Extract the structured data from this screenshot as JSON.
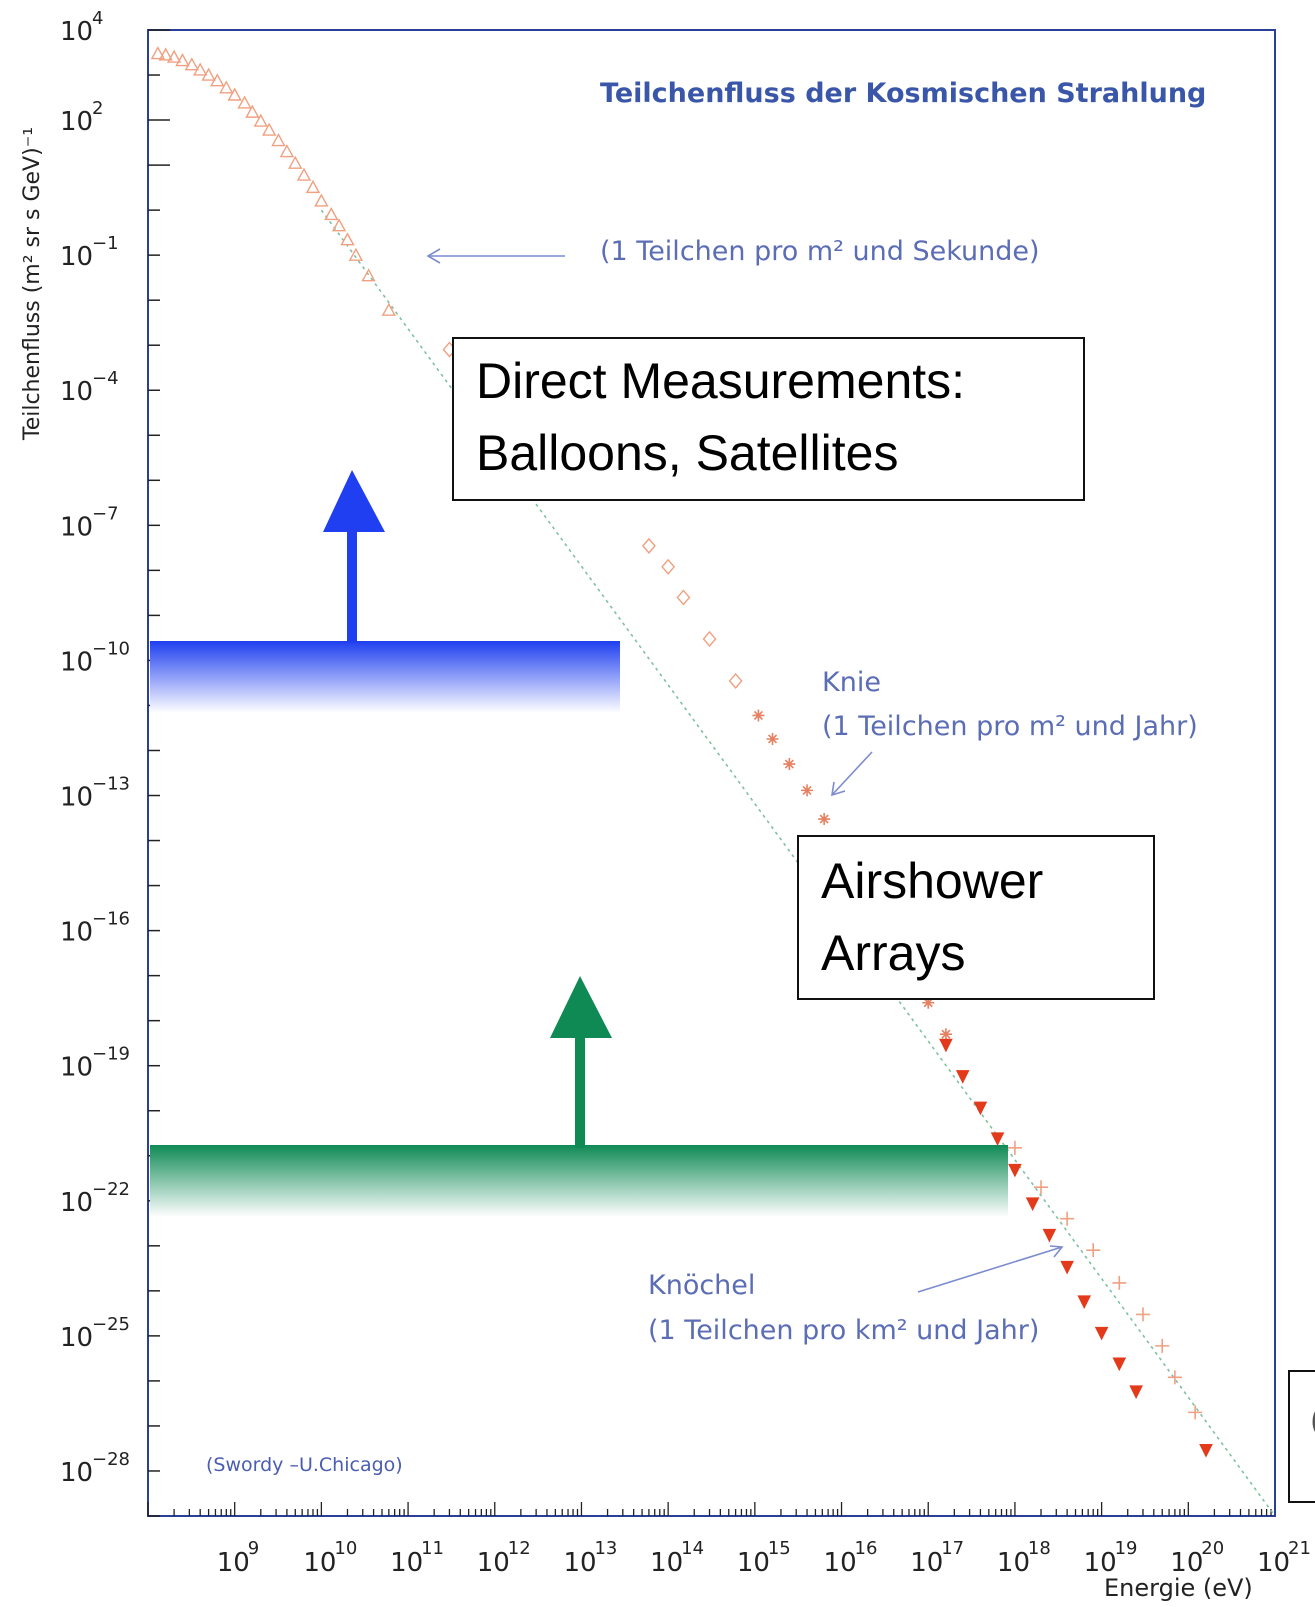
{
  "chart_data": {
    "type": "scatter",
    "title": "Teilchenfluss der Kosmischen Strahlung",
    "ylabel": "Teilchenfluss (m² sr s GeV)⁻¹",
    "xlabel": "Energie (eV)",
    "x_scale": "log",
    "y_scale": "log",
    "xlim": [
      100000000.0,
      1e+21
    ],
    "ylim": [
      1e-29,
      10000.0
    ],
    "x_ticks": [
      {
        "base": "10",
        "exp": "9",
        "value": 1000000000.0
      },
      {
        "base": "10",
        "exp": "10",
        "value": 10000000000.0
      },
      {
        "base": "10",
        "exp": "11",
        "value": 100000000000.0
      },
      {
        "base": "10",
        "exp": "12",
        "value": 1000000000000.0
      },
      {
        "base": "10",
        "exp": "13",
        "value": 10000000000000.0
      },
      {
        "base": "10",
        "exp": "14",
        "value": 100000000000000.0
      },
      {
        "base": "10",
        "exp": "15",
        "value": 1000000000000000.0
      },
      {
        "base": "10",
        "exp": "16",
        "value": 1e+16
      },
      {
        "base": "10",
        "exp": "17",
        "value": 1e+17
      },
      {
        "base": "10",
        "exp": "18",
        "value": 1e+18
      },
      {
        "base": "10",
        "exp": "19",
        "value": 1e+19
      },
      {
        "base": "10",
        "exp": "20",
        "value": 1e+20
      },
      {
        "base": "10",
        "exp": "21",
        "value": 1e+21
      }
    ],
    "y_ticks": [
      {
        "base": "10",
        "exp": "4",
        "value": 10000.0
      },
      {
        "base": "10",
        "exp": "2",
        "value": 100.0
      },
      {
        "base": "10",
        "exp": "−1",
        "value": 0.1
      },
      {
        "base": "10",
        "exp": "−4",
        "value": 0.0001
      },
      {
        "base": "10",
        "exp": "−7",
        "value": 1e-07
      },
      {
        "base": "10",
        "exp": "−10",
        "value": 1e-10
      },
      {
        "base": "10",
        "exp": "−13",
        "value": 1e-13
      },
      {
        "base": "10",
        "exp": "−16",
        "value": 1e-16
      },
      {
        "base": "10",
        "exp": "−19",
        "value": 1e-19
      },
      {
        "base": "10",
        "exp": "−22",
        "value": 1e-22
      },
      {
        "base": "10",
        "exp": "−25",
        "value": 1e-25
      },
      {
        "base": "10",
        "exp": "−28",
        "value": 1e-28
      }
    ],
    "series": [
      {
        "marker": "triangle-open",
        "color": "#f0a080",
        "points": [
          [
            130000000.0,
            3000
          ],
          [
            160000000.0,
            2800
          ],
          [
            200000000.0,
            2500
          ],
          [
            250000000.0,
            2100
          ],
          [
            320000000.0,
            1700
          ],
          [
            400000000.0,
            1300
          ],
          [
            500000000.0,
            1000
          ],
          [
            630000000.0,
            750
          ],
          [
            800000000.0,
            520
          ],
          [
            1000000000.0,
            360
          ],
          [
            1300000000.0,
            240
          ],
          [
            1600000000.0,
            150
          ],
          [
            2000000000.0,
            95
          ],
          [
            2500000000.0,
            60
          ],
          [
            3200000000.0,
            35
          ],
          [
            4000000000.0,
            20
          ],
          [
            5000000000.0,
            11
          ],
          [
            6300000000.0,
            6
          ],
          [
            8000000000.0,
            3.2
          ],
          [
            10000000000.0,
            1.6
          ],
          [
            13000000000.0,
            0.8
          ],
          [
            16000000000.0,
            0.45
          ],
          [
            20000000000.0,
            0.22
          ],
          [
            25000000000.0,
            0.1
          ],
          [
            35000000000.0,
            0.035
          ],
          [
            60000000000.0,
            0.006
          ]
        ]
      },
      {
        "marker": "diamond-open",
        "color": "#f0a080",
        "points": [
          [
            300000000000.0,
            0.0008
          ],
          [
            20000000000000.0,
            1e-06
          ],
          [
            60000000000000.0,
            3.5e-08
          ],
          [
            100000000000000.0,
            1.2e-08
          ],
          [
            150000000000000.0,
            2.5e-09
          ],
          [
            300000000000000.0,
            3e-10
          ],
          [
            600000000000000.0,
            3.5e-11
          ]
        ]
      },
      {
        "marker": "star",
        "color": "#e58060",
        "points": [
          [
            1100000000000000.0,
            6e-12
          ],
          [
            1600000000000000.0,
            1.8e-12
          ],
          [
            2500000000000000.0,
            5e-13
          ],
          [
            4000000000000000.0,
            1.3e-13
          ],
          [
            6300000000000000.0,
            3e-14
          ],
          [
            1e+16,
            7e-15
          ],
          [
            1.6e+16,
            1.5e-15
          ],
          [
            2.5e+16,
            3e-16
          ],
          [
            4e+16,
            6e-17
          ],
          [
            6.3e+16,
            1.2e-17
          ],
          [
            1e+17,
            2.5e-18
          ],
          [
            1.6e+17,
            5e-19
          ]
        ]
      },
      {
        "marker": "triangle-down-filled",
        "color": "#e23a1a",
        "points": [
          [
            1.6e+17,
            3e-19
          ],
          [
            2.5e+17,
            6e-20
          ],
          [
            4e+17,
            1.2e-20
          ],
          [
            6.3e+17,
            2.5e-21
          ],
          [
            1e+18,
            5e-22
          ],
          [
            1.6e+18,
            9e-23
          ],
          [
            2.5e+18,
            1.8e-23
          ],
          [
            4e+18,
            3.5e-24
          ],
          [
            6.3e+18,
            6e-25
          ],
          [
            1e+19,
            1.2e-25
          ],
          [
            1.6e+19,
            2.5e-26
          ],
          [
            2.5e+19,
            6e-27
          ],
          [
            1.6e+20,
            3e-28
          ]
        ]
      },
      {
        "marker": "open-star",
        "color": "#f0a080",
        "points": [
          [
            1e+18,
            1.5e-21
          ],
          [
            2e+18,
            2e-22
          ],
          [
            4e+18,
            4e-23
          ],
          [
            8e+18,
            8e-24
          ],
          [
            1.6e+19,
            1.5e-24
          ],
          [
            3e+19,
            3e-25
          ],
          [
            5e+19,
            6e-26
          ],
          [
            7e+19,
            1.2e-26
          ],
          [
            1.2e+20,
            2e-27
          ]
        ]
      }
    ],
    "reference_line": {
      "style": "dotted",
      "color": "#80c0a0",
      "from": [
        10000000000.0,
        1.0
      ],
      "to": [
        1e+21,
        1e-29
      ]
    },
    "annotations": [
      "(1 Teilchen pro m² und Sekunde)",
      "Knie",
      "(1 Teilchen pro m² und Jahr)",
      "Knöchel",
      "(1 Teilchen pro km² und Jahr)"
    ],
    "credit": "(Swordy –U.Chicago)",
    "grid": false,
    "legend": "none"
  },
  "overlays": {
    "direct_box": {
      "line1": "Direct Measurements:",
      "line2": "Balloons, Satellites"
    },
    "airshower_box": {
      "line1": "Airshower",
      "line2": "Arrays"
    },
    "cut_box": {
      "text": "C"
    },
    "colors": {
      "blue_band": "#1f3ff0",
      "green_band": "#0f8a55",
      "axis_frame": "#2a3f9a"
    }
  }
}
